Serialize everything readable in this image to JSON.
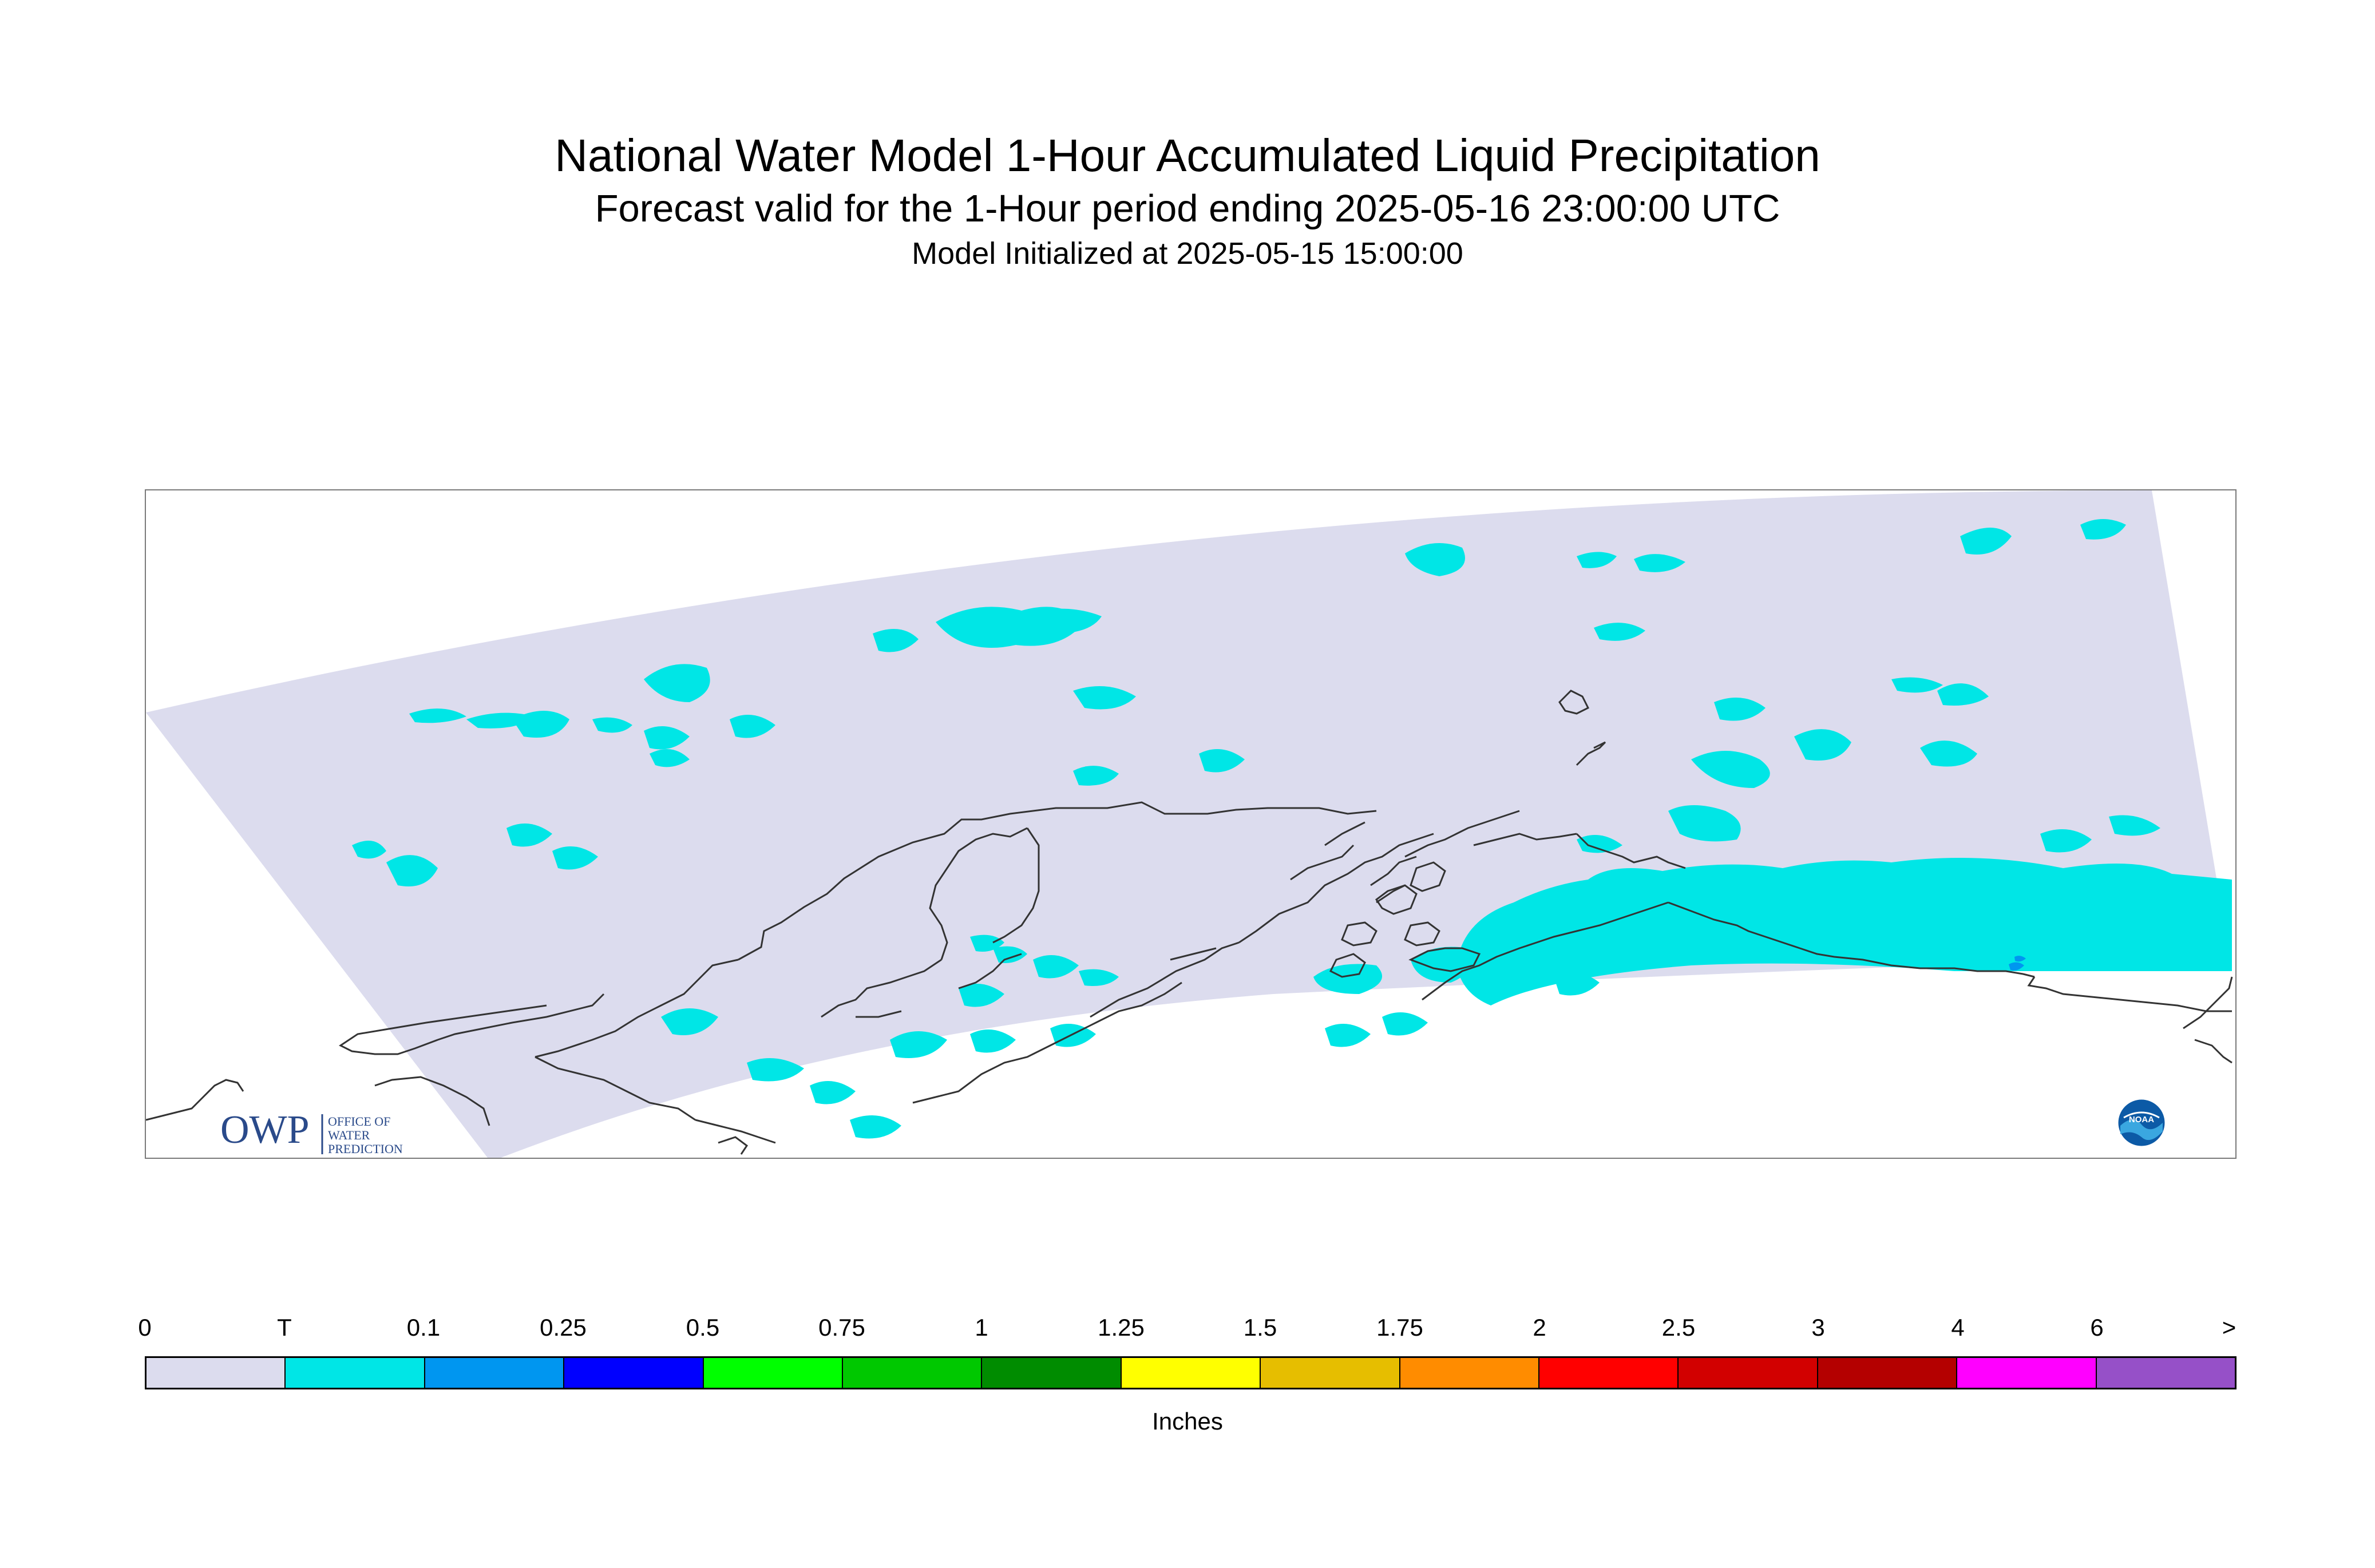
{
  "header": {
    "title": "National Water Model 1-Hour Accumulated Liquid Precipitation",
    "subtitle": "Forecast valid for the 1-Hour period ending 2025-05-16 23:00:00 UTC",
    "init_text": "Model Initialized at 2025-05-15 15:00:00"
  },
  "map": {
    "domain_color": "#dcdcee",
    "precip_color": "#00e6e6",
    "precip_light_blue": "#0096f0",
    "coast_color": "#333333"
  },
  "logos": {
    "owp": {
      "mark": "OWP",
      "lines": [
        "OFFICE OF",
        "WATER",
        "PREDICTION"
      ]
    },
    "noaa": {
      "mark": "NOAA"
    }
  },
  "legend": {
    "labels": [
      "0",
      "T",
      "0.1",
      "0.25",
      "0.5",
      "0.75",
      "1",
      "1.25",
      "1.5",
      "1.75",
      "2",
      "2.5",
      "3",
      "4",
      "6",
      ">"
    ],
    "colors": [
      "#dcdcee",
      "#00e6e6",
      "#0096f0",
      "#0000ff",
      "#00ff00",
      "#00c800",
      "#008c00",
      "#ffff00",
      "#e6be00",
      "#ff8c00",
      "#ff0000",
      "#d20000",
      "#b40000",
      "#ff00ff",
      "#9650c8"
    ],
    "units": "Inches"
  }
}
